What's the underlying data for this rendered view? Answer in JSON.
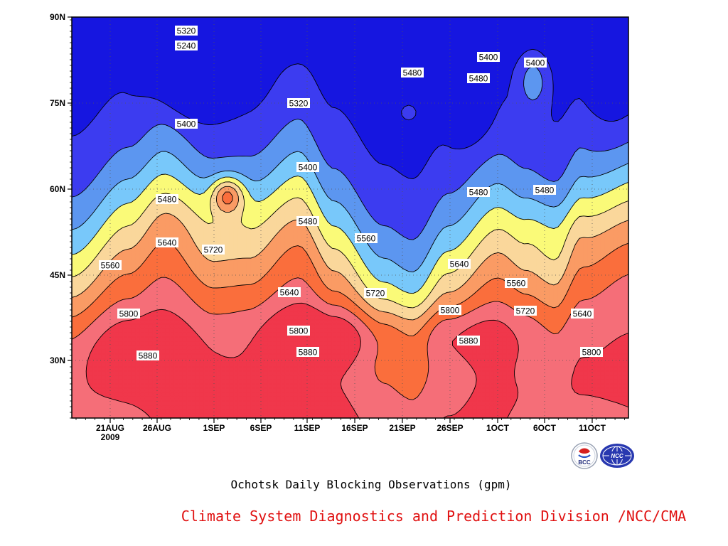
{
  "chart_data": {
    "type": "contour",
    "title": "Ochotsk Daily Blocking Observations (gpm)",
    "credit": "Climate System Diagnostics and Prediction Division /NCC/CMA",
    "x_axis": {
      "ticks": [
        "21AUG",
        "26AUG",
        "1SEP",
        "6SEP",
        "11SEP",
        "16SEP",
        "21SEP",
        "26SEP",
        "1OCT",
        "6OCT",
        "11OCT"
      ],
      "year_label": "2009"
    },
    "y_axis": {
      "ticks": [
        "30N",
        "45N",
        "60N",
        "75N",
        "90N"
      ],
      "range_deg": [
        20,
        90
      ]
    },
    "contour_interval": 80,
    "levels": [
      5240,
      5320,
      5400,
      5480,
      5560,
      5640,
      5720,
      5800,
      5880
    ],
    "fill_colors": [
      "#1616e0",
      "#3c3cf0",
      "#5c96f0",
      "#78c8fa",
      "#fafa78",
      "#fad79b",
      "#fa9b64",
      "#fa6e3c",
      "#f56e78",
      "#f0374b"
    ],
    "contour_labels": [
      "5320",
      "5240",
      "5320",
      "5400",
      "5400",
      "5480",
      "5400",
      "5480",
      "5400",
      "5480",
      "5480",
      "5480",
      "5560",
      "5720",
      "5640",
      "5560",
      "5640",
      "5480",
      "5640",
      "5560",
      "5720",
      "5800",
      "5640",
      "5800",
      "5720",
      "5800",
      "5880",
      "5880",
      "5880",
      "5640",
      "5800"
    ],
    "grid": true,
    "grid_style": "dotted"
  },
  "logos": {
    "left": "BCC",
    "right": "NCC"
  },
  "colors": {
    "credit_text": "#e01010",
    "contour_line": "#000000"
  }
}
